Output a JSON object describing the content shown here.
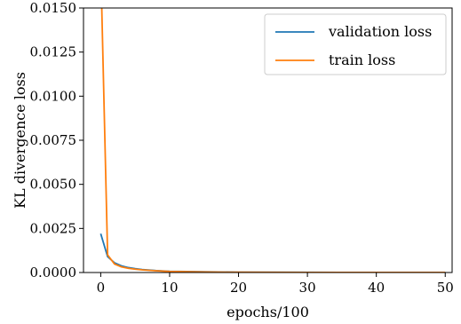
{
  "chart_data": {
    "type": "line",
    "xlabel": "epochs/100",
    "ylabel": "KL divergence loss",
    "xlim": [
      -2.5,
      51
    ],
    "ylim": [
      0,
      0.015
    ],
    "x_ticks": [
      0,
      10,
      20,
      30,
      40,
      50
    ],
    "x_tick_labels": [
      "0",
      "10",
      "20",
      "30",
      "40",
      "50"
    ],
    "y_ticks": [
      0,
      0.0025,
      0.005,
      0.0075,
      0.01,
      0.0125,
      0.015
    ],
    "y_tick_labels": [
      "0.0000",
      "0.0025",
      "0.0050",
      "0.0075",
      "0.0100",
      "0.0125",
      "0.0150"
    ],
    "grid": false,
    "legend_position": "top-right",
    "series": [
      {
        "name": "validation loss",
        "color": "#1f77b4",
        "x": [
          0,
          1,
          2,
          3,
          4,
          5,
          6,
          8,
          10,
          15,
          20,
          30,
          40,
          50
        ],
        "y": [
          0.0022,
          0.0009,
          0.00055,
          0.00038,
          0.00028,
          0.00022,
          0.00017,
          0.00011,
          7e-05,
          4e-05,
          2e-05,
          1e-05,
          5e-06,
          3e-06
        ]
      },
      {
        "name": "train loss",
        "color": "#ff7f0e",
        "x": [
          0,
          1,
          2,
          3,
          4,
          5,
          6,
          8,
          10,
          15,
          20,
          30,
          40,
          50
        ],
        "y": [
          0.0175,
          0.001,
          0.00048,
          0.00032,
          0.00024,
          0.00019,
          0.00015,
          0.0001,
          6e-05,
          3e-05,
          1.5e-05,
          8e-06,
          4e-06,
          2e-06
        ]
      }
    ]
  }
}
